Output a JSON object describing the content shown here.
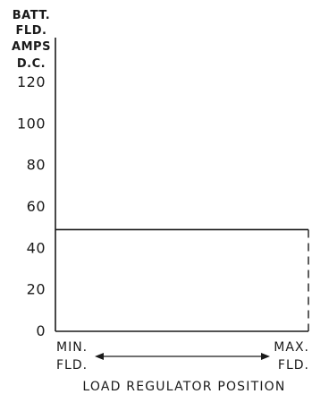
{
  "chart_data": {
    "type": "line",
    "ylabel_lines": [
      "BATT.",
      "FLD.",
      "AMPS",
      "D.C."
    ],
    "yticks": [
      0,
      20,
      40,
      60,
      80,
      100,
      120
    ],
    "ylim": [
      0,
      120
    ],
    "xlabel": "LOAD REGULATOR POSITION",
    "xtick_left": [
      "MIN.",
      "FLD."
    ],
    "xtick_right": [
      "MAX.",
      "FLD."
    ],
    "xlim": [
      0,
      1
    ],
    "series": [
      {
        "x": [
          0,
          1
        ],
        "y": [
          49,
          49
        ]
      }
    ],
    "right_boundary_style": "dashed",
    "x_range_arrow": "double-headed",
    "grid": false,
    "color": "#1a1a1a"
  }
}
